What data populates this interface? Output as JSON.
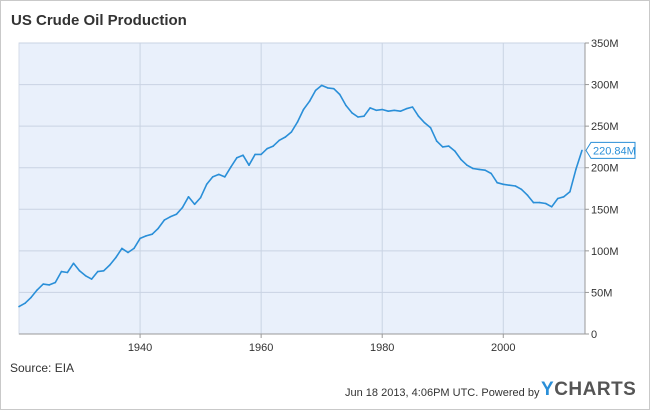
{
  "chart_data": {
    "type": "line",
    "title": "US Crude Oil Production",
    "series_color": "#2a8fd8",
    "background_color": "#e9f0fb",
    "grid": true,
    "y_unit_suffix": "M",
    "ylim": [
      0,
      350
    ],
    "yticks": [
      0,
      50,
      100,
      150,
      200,
      250,
      300,
      350
    ],
    "ytick_labels": [
      "0",
      "50M",
      "100M",
      "150M",
      "200M",
      "250M",
      "300M",
      "350M"
    ],
    "xlim": [
      1920,
      2013.5
    ],
    "xticks": [
      1940,
      1960,
      1980,
      2000
    ],
    "xtick_labels": [
      "1940",
      "1960",
      "1980",
      "2000"
    ],
    "last_value_label": "220.84M",
    "last_value": 220.84,
    "x": [
      1920,
      1921,
      1922,
      1923,
      1924,
      1925,
      1926,
      1927,
      1928,
      1929,
      1930,
      1931,
      1932,
      1933,
      1934,
      1935,
      1936,
      1937,
      1938,
      1939,
      1940,
      1941,
      1942,
      1943,
      1944,
      1945,
      1946,
      1947,
      1948,
      1949,
      1950,
      1951,
      1952,
      1953,
      1954,
      1955,
      1956,
      1957,
      1958,
      1959,
      1960,
      1961,
      1962,
      1963,
      1964,
      1965,
      1966,
      1967,
      1968,
      1969,
      1970,
      1971,
      1972,
      1973,
      1974,
      1975,
      1976,
      1977,
      1978,
      1979,
      1980,
      1981,
      1982,
      1983,
      1984,
      1985,
      1986,
      1987,
      1988,
      1989,
      1990,
      1991,
      1992,
      1993,
      1994,
      1995,
      1996,
      1997,
      1998,
      1999,
      2000,
      2001,
      2002,
      2003,
      2004,
      2005,
      2006,
      2007,
      2008,
      2009,
      2010,
      2011,
      2012,
      2013
    ],
    "values": [
      33,
      37,
      44,
      53,
      60,
      59,
      62,
      75,
      74,
      85,
      76,
      70,
      66,
      75,
      76,
      83,
      92,
      103,
      98,
      103,
      115,
      118,
      120,
      127,
      137,
      141,
      144,
      152,
      165,
      156,
      164,
      180,
      189,
      192,
      189,
      201,
      212,
      215,
      203,
      216,
      216,
      223,
      226,
      233,
      237,
      243,
      255,
      270,
      280,
      293,
      299,
      296,
      295,
      288,
      275,
      266,
      261,
      262,
      272,
      269,
      270,
      268,
      269,
      268,
      271,
      273,
      262,
      254,
      248,
      232,
      225,
      226,
      220,
      210,
      203,
      199,
      198,
      197,
      193,
      182,
      180,
      179,
      178,
      174,
      167,
      158,
      158,
      157,
      153,
      163,
      165,
      171,
      198,
      220.84
    ],
    "source": "Source: EIA",
    "footer": "Jun 18 2013, 4:06PM UTC.  Powered by",
    "logo_y": "Y",
    "logo_rest": "CHARTS"
  }
}
